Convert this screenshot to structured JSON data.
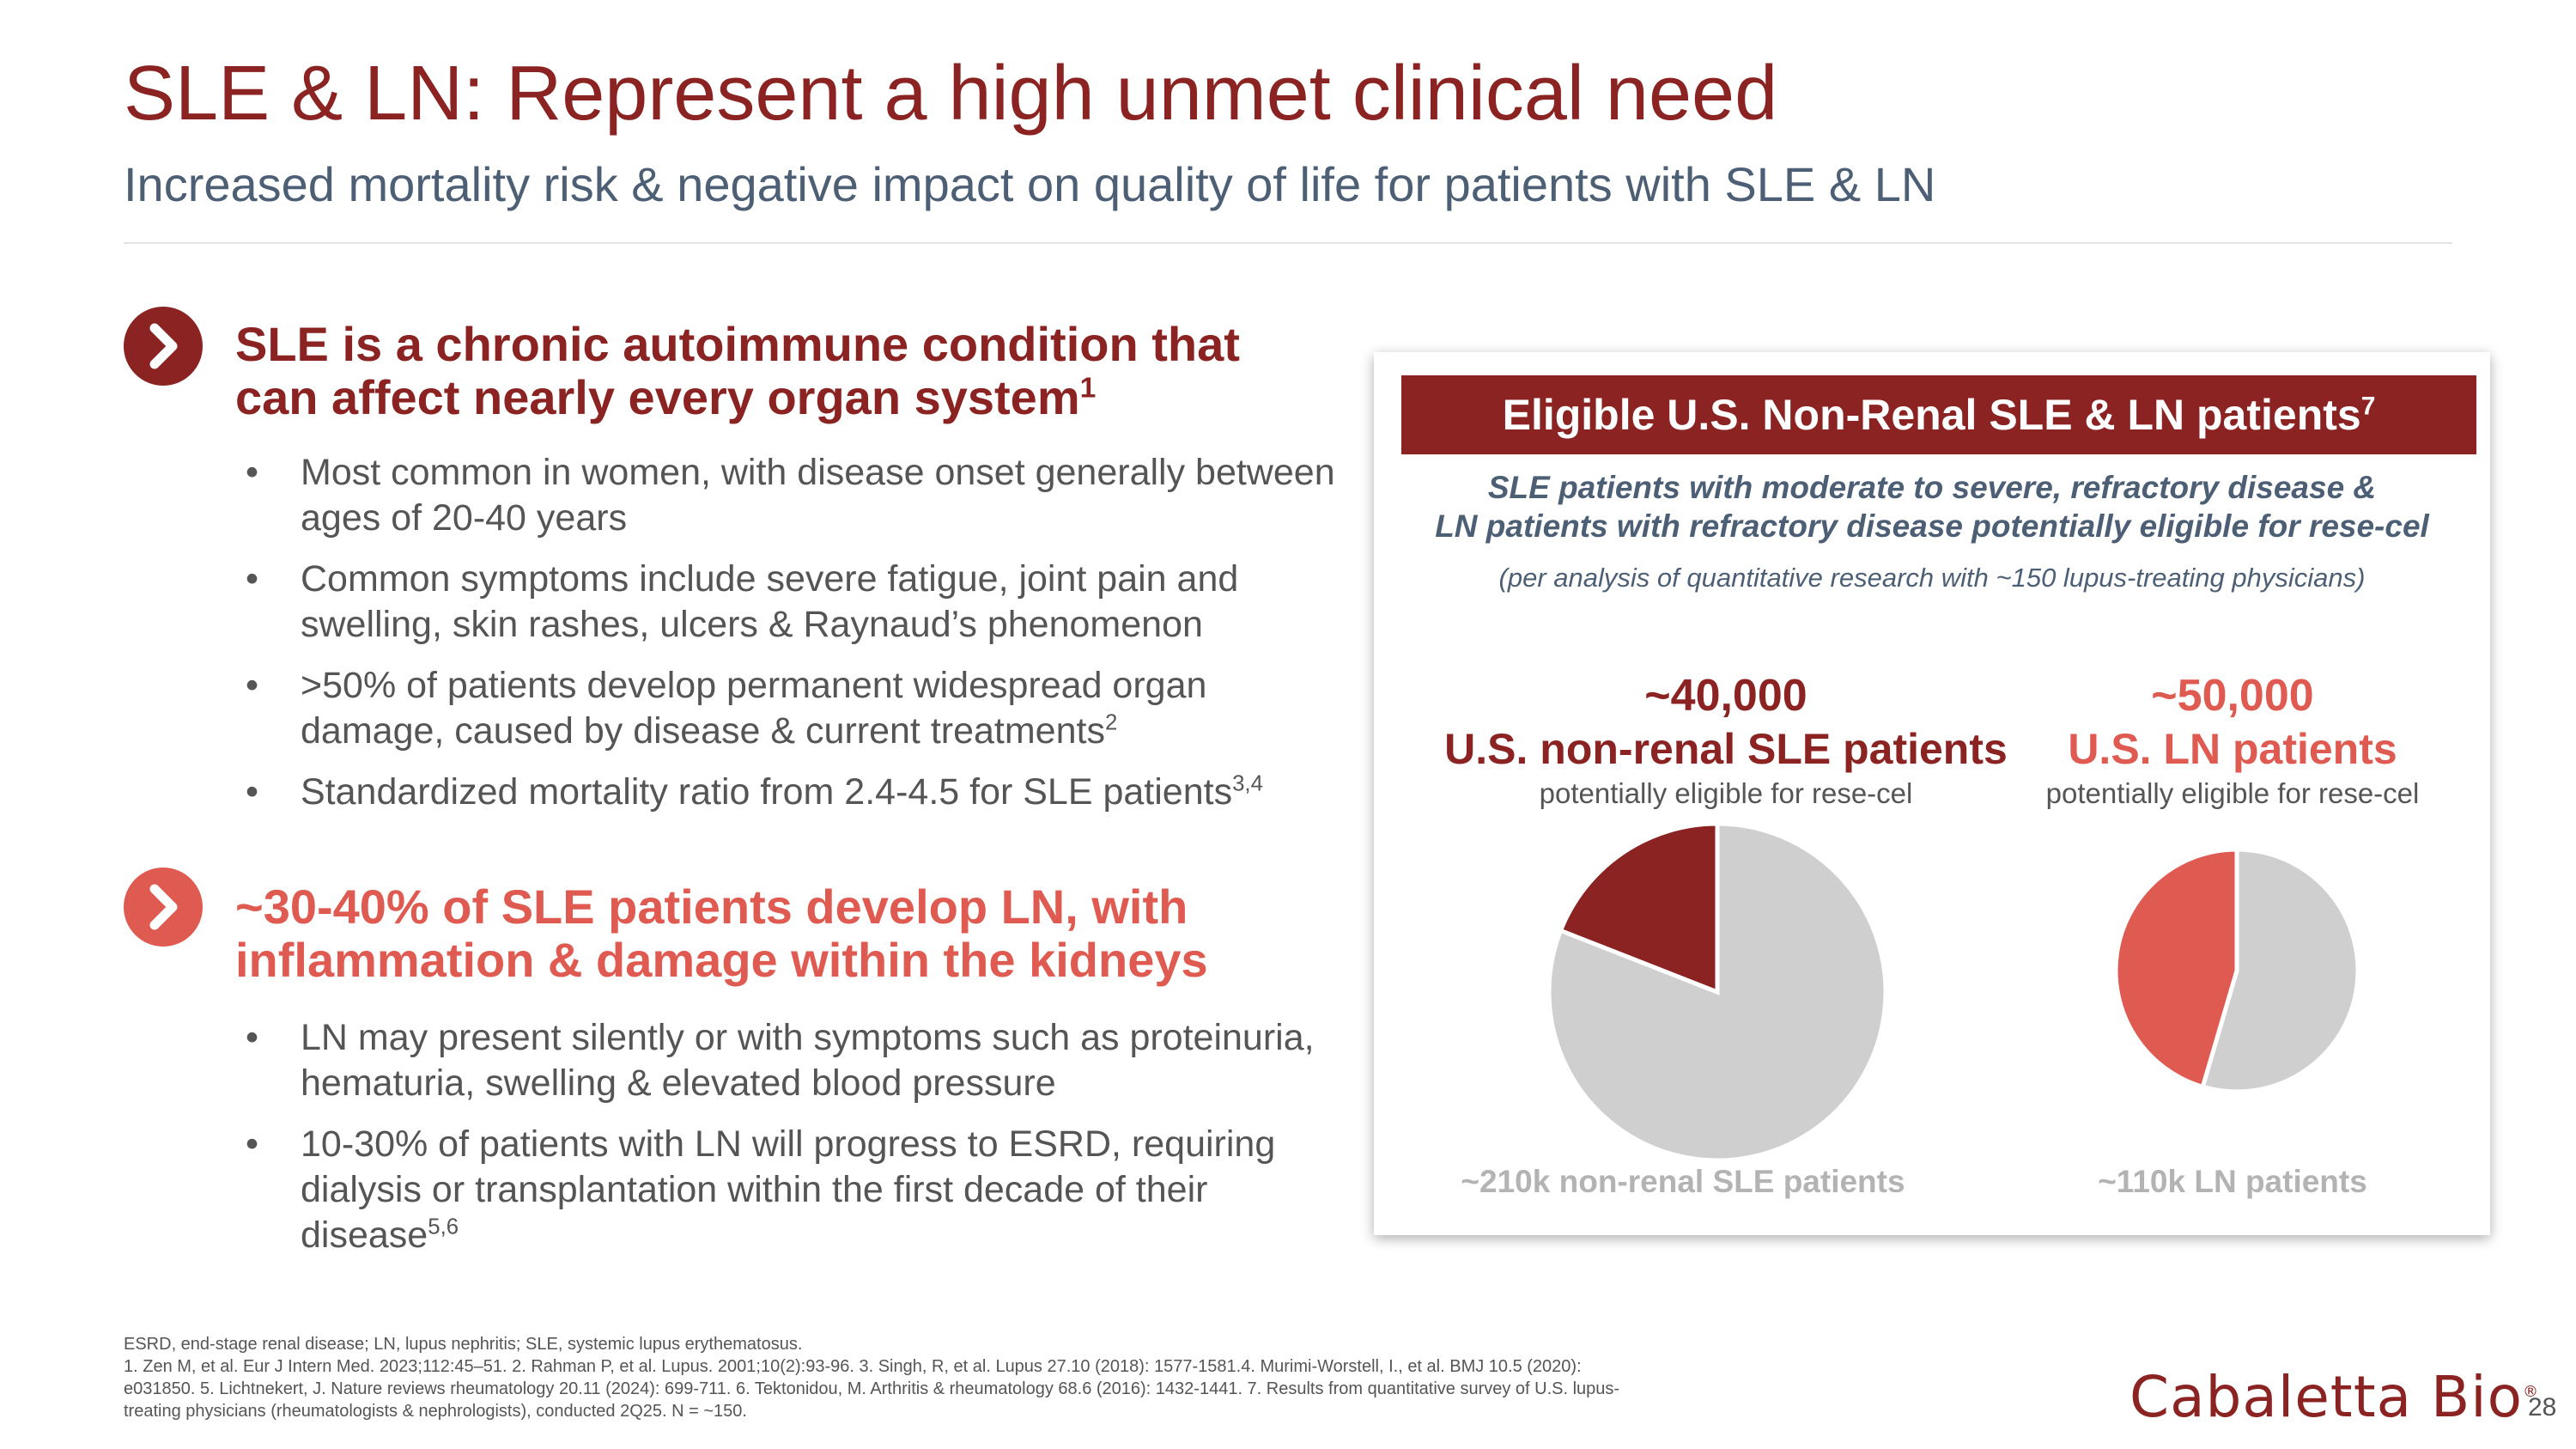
{
  "header": {
    "title": "SLE & LN: Represent a high unmet clinical need",
    "subtitle": "Increased mortality risk & negative impact on quality of life for patients with SLE & LN"
  },
  "section1": {
    "heading_line1": "SLE is a chronic autoimmune condition that",
    "heading_line2": "can affect nearly every organ system",
    "heading_ref": "1",
    "bullets": [
      {
        "text": "Most common in women, with disease onset generally between ages of 20-40 years",
        "ref": ""
      },
      {
        "text": "Common symptoms include severe fatigue, joint pain and swelling, skin rashes, ulcers & Raynaud’s phenomenon",
        "ref": ""
      },
      {
        "text": ">50% of patients develop permanent widespread organ damage, caused by disease & current treatments",
        "ref": "2"
      },
      {
        "text": "Standardized mortality ratio from 2.4-4.5 for SLE patients",
        "ref": "3,4"
      }
    ]
  },
  "section2": {
    "heading_line1": "~30-40% of SLE patients develop LN, with",
    "heading_line2": "inflammation & damage within the kidneys",
    "bullets": [
      {
        "text": "LN may present silently or with symptoms such as proteinuria, hematuria, swelling & elevated blood pressure",
        "ref": ""
      },
      {
        "text": "10-30% of patients with LN will progress to ESRD, requiring dialysis or transplantation within the first decade of their disease",
        "ref": "5,6"
      }
    ]
  },
  "panel": {
    "banner": "Eligible U.S. Non-Renal SLE & LN patients",
    "banner_ref": "7",
    "sub_line1": "SLE patients with moderate to severe, refractory disease &",
    "sub_line2": "LN patients with refractory disease potentially eligible for rese-cel",
    "note": "(per analysis of quantitative research with ~150 lupus-treating physicians)"
  },
  "chart_data": [
    {
      "type": "pie",
      "number": "~40,000",
      "label": "U.S. non-renal SLE patients",
      "sublabel": "potentially eligible for rese-cel",
      "total_label": "~210k non-renal SLE patients",
      "slices": [
        {
          "name": "eligible",
          "value": 40000,
          "color": "#8b2323"
        },
        {
          "name": "remaining",
          "value": 170000,
          "color": "#d0cfcf"
        }
      ]
    },
    {
      "type": "pie",
      "number": "~50,000",
      "label": "U.S. LN patients",
      "sublabel": "potentially eligible for rese-cel",
      "total_label": "~110k LN patients",
      "slices": [
        {
          "name": "eligible",
          "value": 50000,
          "color": "#df5a50"
        },
        {
          "name": "remaining",
          "value": 60000,
          "color": "#d0cfcf"
        }
      ]
    }
  ],
  "footnotes": {
    "line1": "ESRD, end-stage renal disease; LN, lupus nephritis; SLE, systemic lupus erythematosus.",
    "line2": "1. Zen M, et al. Eur J Intern Med. 2023;112:45–51. 2. Rahman P, et al. Lupus. 2001;10(2):93-96. 3. Singh, R, et al. Lupus 27.10 (2018): 1577-1581.4. Murimi-Worstell, I., et al. BMJ 10.5 (2020):",
    "line3": "e031850. 5. Lichtnekert, J. Nature reviews rheumatology 20.11 (2024): 699-711. 6. Tektonidou, M. Arthritis & rheumatology 68.6 (2016): 1432-1441. 7. Results from quantitative survey of U.S. lupus-",
    "line4": "treating physicians (rheumatologists & nephrologists), conducted 2Q25. N = ~150."
  },
  "logo": {
    "text": "Cabaletta Bio",
    "mark": "®"
  },
  "page_number": "28",
  "colors": {
    "dark_red": "#8b2323",
    "coral": "#df5a50",
    "slate": "#4d5f75",
    "gray": "#d0cfcf"
  }
}
